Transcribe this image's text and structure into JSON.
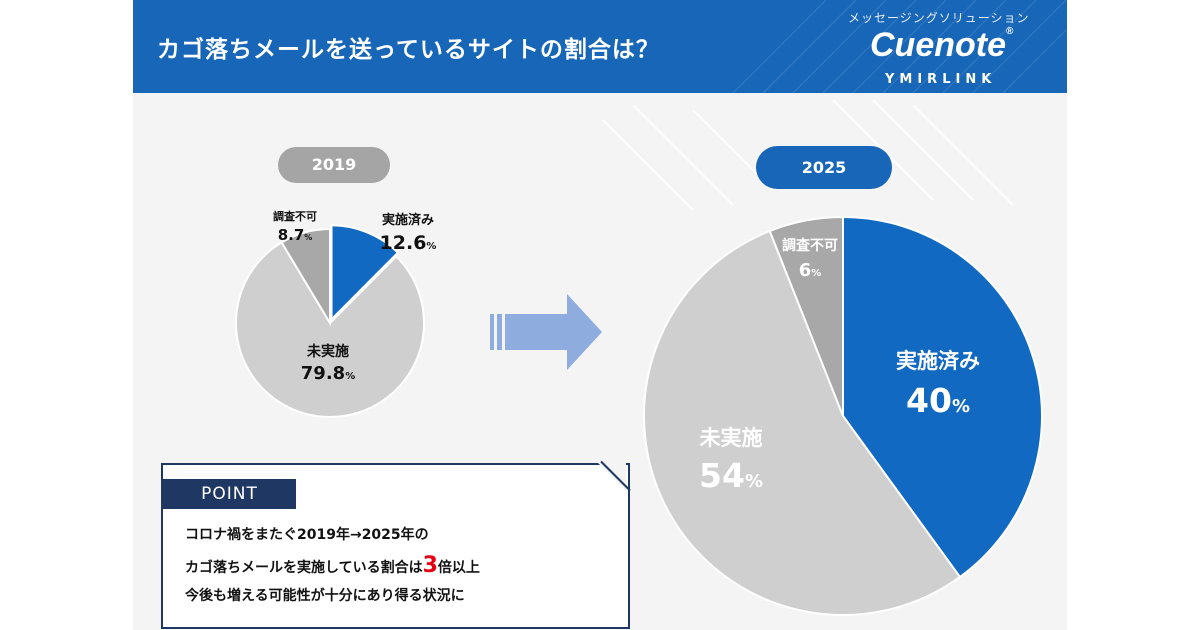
{
  "header": {
    "title": "カゴ落ちメールを送っているサイトの割合は？",
    "brand_tagline": "メッセージングソリューション",
    "brand_logo": "Cuenote",
    "brand_logo_mark": "®",
    "brand_company": "YMIRLINK"
  },
  "colors": {
    "header_bg": "#1766b8",
    "implemented": "#1169c1",
    "not_implemented": "#cfcfcf",
    "unknown": "#a8a8a8",
    "arrow": "#8eacde",
    "point_navy": "#1f3763",
    "highlight": "#e60012"
  },
  "icons": {
    "arrow": "right-arrow-icon"
  },
  "chart_data": [
    {
      "type": "pie",
      "title": "2019",
      "unit": "%",
      "slices": [
        {
          "label": "実施済み",
          "value": 12.6,
          "display": "12.6",
          "color": "#1169c1"
        },
        {
          "label": "未実施",
          "value": 79.8,
          "display": "79.8",
          "color": "#cfcfcf"
        },
        {
          "label": "調査不可",
          "value": 8.7,
          "display": "8.7",
          "color": "#a8a8a8"
        }
      ]
    },
    {
      "type": "pie",
      "title": "2025",
      "unit": "%",
      "slices": [
        {
          "label": "実施済み",
          "value": 40,
          "display": "40",
          "color": "#1169c1"
        },
        {
          "label": "未実施",
          "value": 54,
          "display": "54",
          "color": "#cfcfcf"
        },
        {
          "label": "調査不可",
          "value": 6,
          "display": "6",
          "color": "#a8a8a8"
        }
      ]
    }
  ],
  "point": {
    "label": "POINT",
    "line1": "コロナ禍をまたぐ2019年→2025年の",
    "line2_before": "カゴ落ちメールを実施している割合は",
    "line2_highlight": "3",
    "line2_after": "倍以上",
    "line3": "今後も増える可能性が十分にあり得る状況に"
  }
}
